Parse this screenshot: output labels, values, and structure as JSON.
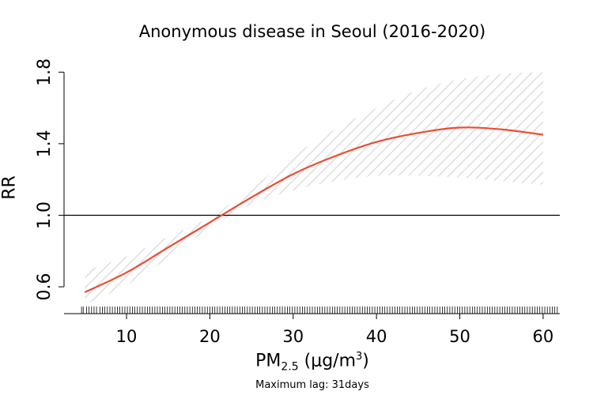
{
  "chart_data": {
    "type": "line",
    "title": "Anonymous disease in Seoul (2016-2020)",
    "xlabel": {
      "main": "PM",
      "sub": "2.5",
      "unit_prefix": " (μg/m",
      "sup": "3",
      "unit_suffix": ")"
    },
    "ylabel": "RR",
    "note": "Maximum lag: 31days",
    "xlim": [
      2.5,
      62
    ],
    "ylim": [
      0.45,
      1.85
    ],
    "x_ticks": [
      10,
      20,
      30,
      40,
      50,
      60
    ],
    "x_tick_labels": [
      "10",
      "20",
      "30",
      "40",
      "50",
      "60"
    ],
    "y_ticks": [
      0.6,
      1.0,
      1.4,
      1.8
    ],
    "y_tick_labels": [
      "0.6",
      "1.0",
      "1.4",
      "1.8"
    ],
    "reference_line_y": 1.0,
    "colors": {
      "estimate": "#ee4b33",
      "ci_hatch": "#d9d9d9",
      "axis": "#000000"
    },
    "series": [
      {
        "x": [
          5,
          10,
          15,
          20,
          25,
          30,
          35,
          40,
          45,
          50,
          55,
          60
        ],
        "y": [
          0.57,
          0.68,
          0.82,
          0.96,
          1.1,
          1.23,
          1.33,
          1.41,
          1.46,
          1.49,
          1.48,
          1.45
        ],
        "lower": [
          0.5,
          0.61,
          0.76,
          0.93,
          1.06,
          1.14,
          1.19,
          1.22,
          1.22,
          1.21,
          1.19,
          1.17
        ],
        "upper": [
          0.69,
          0.77,
          0.88,
          0.99,
          1.15,
          1.33,
          1.48,
          1.6,
          1.7,
          1.76,
          1.79,
          1.8
        ]
      }
    ],
    "rug_x": [
      4.6,
      4.8,
      5.2,
      5.5,
      5.8,
      6.1,
      6.4,
      6.8,
      7.1,
      7.4,
      7.7,
      8.0,
      8.3,
      8.6,
      8.9,
      9.2,
      9.5,
      9.8,
      10.1,
      10.4,
      10.7,
      11.0,
      11.3,
      11.6,
      11.9,
      12.2,
      12.5,
      12.8,
      13.1,
      13.4,
      13.7,
      14.0,
      14.3,
      14.6,
      14.9,
      15.2,
      15.5,
      15.8,
      16.1,
      16.4,
      16.7,
      17.0,
      17.3,
      17.6,
      17.9,
      18.2,
      18.5,
      18.8,
      19.1,
      19.4,
      19.7,
      20.0,
      20.3,
      20.6,
      20.9,
      21.2,
      21.5,
      21.8,
      22.1,
      22.4,
      22.7,
      23.0,
      23.3,
      23.6,
      23.9,
      24.2,
      24.5,
      24.8,
      25.1,
      25.4,
      25.7,
      26.0,
      26.3,
      26.6,
      26.9,
      27.2,
      27.5,
      27.8,
      28.1,
      28.4,
      28.7,
      29.0,
      29.3,
      29.6,
      29.9,
      30.2,
      30.5,
      30.8,
      31.1,
      31.4,
      31.7,
      32.0,
      32.3,
      32.6,
      32.9,
      33.2,
      33.5,
      33.8,
      34.1,
      34.4,
      34.7,
      35.0,
      35.3,
      35.6,
      35.9,
      36.2,
      36.5,
      36.8,
      37.1,
      37.4,
      37.7,
      38.0,
      38.3,
      38.6,
      38.9,
      39.2,
      39.5,
      39.8,
      40.1,
      40.4,
      40.7,
      41.0,
      41.3,
      41.6,
      41.9,
      42.2,
      42.5,
      42.8,
      43.1,
      43.4,
      43.7,
      44.0,
      44.3,
      44.6,
      44.9,
      45.2,
      45.5,
      45.8,
      46.1,
      46.4,
      46.7,
      47.0,
      47.3,
      47.6,
      47.9,
      48.2,
      48.5,
      48.8,
      49.1,
      49.4,
      49.7,
      50.0,
      50.3,
      50.6,
      50.9,
      51.2,
      51.5,
      51.8,
      52.1,
      52.4,
      52.7,
      53.0,
      53.3,
      53.6,
      53.9,
      54.2,
      54.5,
      54.8,
      55.1,
      55.4,
      55.7,
      56.0,
      56.3,
      56.6,
      56.9,
      57.2,
      57.5,
      57.8,
      58.1,
      58.4,
      58.7,
      59.0,
      59.3,
      59.6,
      59.9,
      60.2,
      60.5,
      60.8,
      61.1,
      61.4,
      61.7
    ]
  }
}
